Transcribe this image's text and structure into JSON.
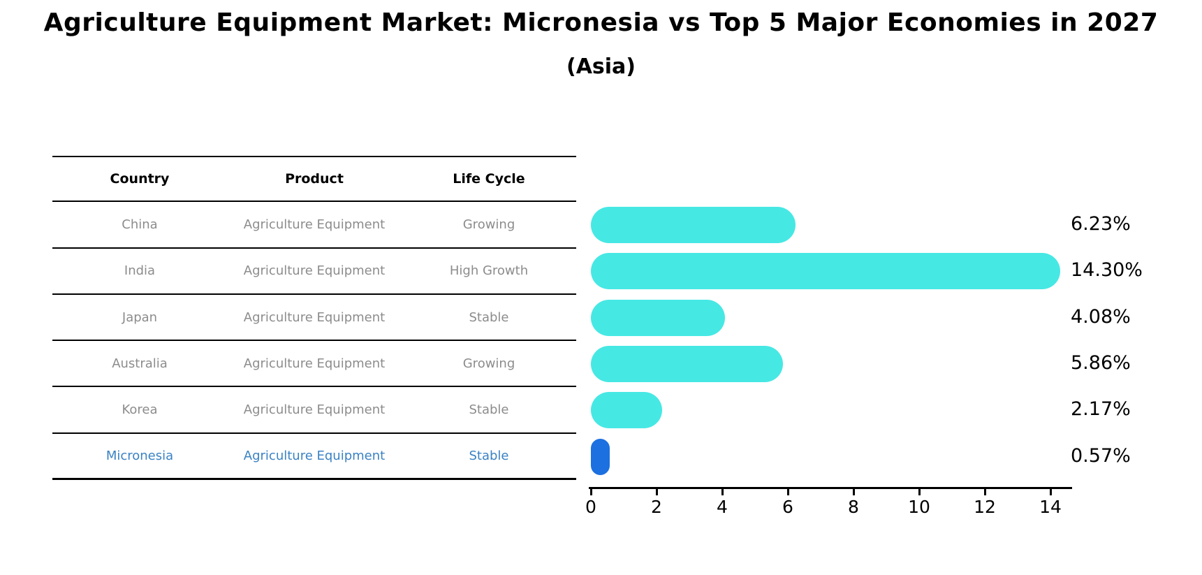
{
  "title": "Agriculture Equipment Market: Micronesia vs Top 5 Major Economies in 2027",
  "subtitle": "(Asia)",
  "table": {
    "headers": [
      "Country",
      "Product",
      "Life Cycle"
    ],
    "rows": [
      {
        "country": "China",
        "product": "Agriculture Equipment",
        "life_cycle": "Growing",
        "highlight": false
      },
      {
        "country": "India",
        "product": "Agriculture Equipment",
        "life_cycle": "High Growth",
        "highlight": false
      },
      {
        "country": "Japan",
        "product": "Agriculture Equipment",
        "life_cycle": "Stable",
        "highlight": false
      },
      {
        "country": "Australia",
        "product": "Agriculture Equipment",
        "life_cycle": "Growing",
        "highlight": false
      },
      {
        "country": "Korea",
        "product": "Agriculture Equipment",
        "life_cycle": "Stable",
        "highlight": false
      },
      {
        "country": "Micronesia",
        "product": "Agriculture Equipment",
        "life_cycle": "Stable",
        "highlight": true
      }
    ]
  },
  "chart_data": {
    "type": "bar",
    "orientation": "horizontal",
    "categories": [
      "China",
      "India",
      "Japan",
      "Australia",
      "Korea",
      "Micronesia"
    ],
    "values": [
      6.23,
      14.3,
      4.08,
      5.86,
      2.17,
      0.57
    ],
    "value_labels": [
      "6.23%",
      "14.30%",
      "4.08%",
      "5.86%",
      "2.17%",
      "0.57%"
    ],
    "highlight_index": 5,
    "xlim": [
      0,
      14.6
    ],
    "x_ticks": [
      0,
      2,
      4,
      6,
      8,
      10,
      12,
      14
    ],
    "x_tick_labels": [
      "0",
      "2",
      "4",
      "6",
      "8",
      "10",
      "12",
      "14"
    ],
    "grid": false,
    "legend": false,
    "bar_color_default": "#46e8e4",
    "bar_color_highlight": "#1c70e0",
    "highlight_text_color": "#3a82c4",
    "table_text_color": "#8c8c8c"
  }
}
